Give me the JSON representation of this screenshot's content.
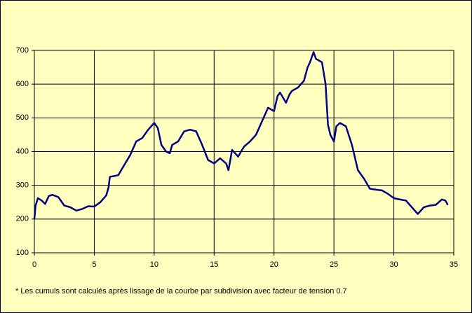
{
  "chart_data": {
    "type": "line",
    "note": "* Les cumuls sont calculés après lissage de la courbe par subdivision avec facteur de tension 0.7",
    "x": [
      0,
      0.1,
      0.3,
      0.6,
      0.9,
      1.2,
      1.5,
      2,
      2.5,
      3,
      3.5,
      4,
      4.5,
      5,
      5.5,
      6,
      6.2,
      6.3,
      7,
      7.5,
      8,
      8.5,
      9,
      9.5,
      10,
      10.3,
      10.6,
      11,
      11.3,
      11.5,
      12,
      12.5,
      13,
      13.5,
      14,
      14.5,
      15,
      15.5,
      16,
      16.2,
      16.5,
      17,
      17.5,
      18,
      18.5,
      19,
      19.5,
      20,
      20.3,
      20.5,
      21,
      21.3,
      21.5,
      22,
      22.5,
      22.8,
      23,
      23.3,
      23.5,
      24,
      24.3,
      24.5,
      24.7,
      25,
      25.2,
      25.5,
      26,
      26.5,
      27,
      27.5,
      28,
      28.5,
      29,
      29.5,
      30,
      30.5,
      31,
      31.5,
      32,
      32.5,
      33,
      33.5,
      34,
      34.3,
      34.5
    ],
    "values": [
      200,
      240,
      262,
      255,
      245,
      268,
      272,
      265,
      240,
      235,
      225,
      230,
      238,
      237,
      250,
      270,
      295,
      325,
      330,
      360,
      390,
      430,
      440,
      465,
      485,
      470,
      420,
      400,
      395,
      420,
      430,
      460,
      465,
      460,
      420,
      375,
      365,
      380,
      365,
      345,
      405,
      385,
      415,
      430,
      450,
      490,
      530,
      520,
      565,
      575,
      545,
      570,
      580,
      590,
      610,
      650,
      665,
      695,
      675,
      665,
      600,
      480,
      450,
      430,
      475,
      485,
      475,
      420,
      345,
      320,
      290,
      287,
      285,
      275,
      262,
      258,
      255,
      235,
      215,
      235,
      240,
      242,
      258,
      255,
      242
    ],
    "color": "#000080",
    "xlim": [
      0,
      35
    ],
    "xticks": [
      0,
      5,
      10,
      15,
      20,
      25,
      30,
      35
    ],
    "ylim": [
      100,
      700
    ],
    "yticks": [
      100,
      200,
      300,
      400,
      500,
      600,
      700
    ],
    "grid": true
  }
}
